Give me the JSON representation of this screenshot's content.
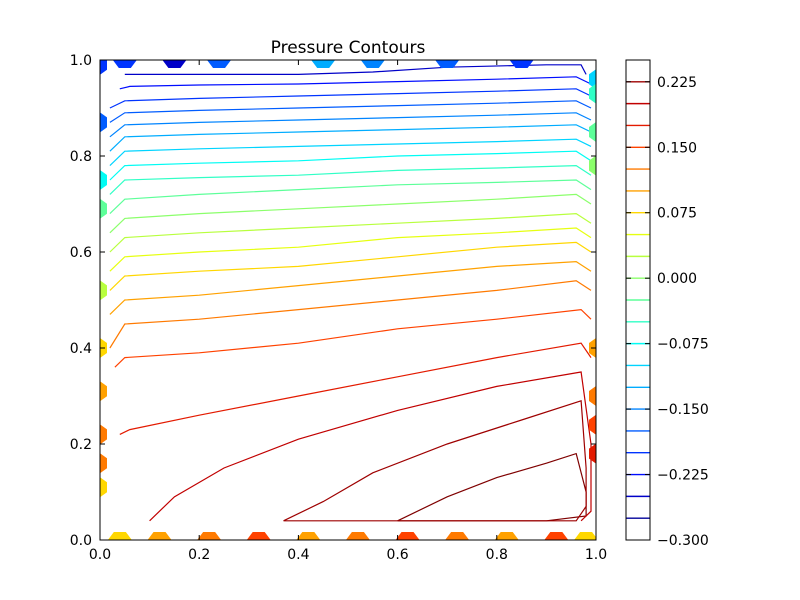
{
  "chart_data": {
    "type": "contour",
    "title": "Pressure Contours",
    "xlabel": "",
    "ylabel": "",
    "xlim": [
      0.0,
      1.0
    ],
    "ylim": [
      0.0,
      1.0
    ],
    "x_ticks": [
      "0.0",
      "0.2",
      "0.4",
      "0.6",
      "0.8",
      "1.0"
    ],
    "y_ticks": [
      "0.0",
      "0.2",
      "0.4",
      "0.6",
      "0.8",
      "1.0"
    ],
    "grid": false,
    "colorbar": {
      "placement": "right",
      "range": [
        -0.3,
        0.25
      ],
      "tick_labels": [
        "0.225",
        "0.150",
        "0.075",
        "0.000",
        "−0.075",
        "−0.150",
        "−0.225",
        "−0.300"
      ],
      "tick_values": [
        0.225,
        0.15,
        0.075,
        0.0,
        -0.075,
        -0.15,
        -0.225,
        -0.3
      ],
      "levels": [
        -0.3,
        -0.275,
        -0.25,
        -0.225,
        -0.2,
        -0.175,
        -0.15,
        -0.125,
        -0.1,
        -0.075,
        -0.05,
        -0.025,
        0.0,
        0.025,
        0.05,
        0.075,
        0.1,
        0.125,
        0.15,
        0.175,
        0.2,
        0.225,
        0.25
      ],
      "colormap": "jet"
    },
    "contour_lines": [
      {
        "level": 0.25,
        "color": "#7f0000",
        "points": [
          [
            0.6,
            0.04
          ],
          [
            0.7,
            0.09
          ],
          [
            0.8,
            0.13
          ],
          [
            0.9,
            0.16
          ],
          [
            0.96,
            0.18
          ],
          [
            0.98,
            0.1
          ],
          [
            0.98,
            0.05
          ],
          [
            0.9,
            0.04
          ],
          [
            0.75,
            0.04
          ],
          [
            0.6,
            0.04
          ]
        ]
      },
      {
        "level": 0.225,
        "color": "#9e0000",
        "points": [
          [
            0.37,
            0.04
          ],
          [
            0.45,
            0.08
          ],
          [
            0.55,
            0.14
          ],
          [
            0.7,
            0.2
          ],
          [
            0.85,
            0.25
          ],
          [
            0.97,
            0.29
          ],
          [
            0.98,
            0.15
          ],
          [
            0.98,
            0.07
          ],
          [
            0.96,
            0.04
          ],
          [
            0.7,
            0.04
          ],
          [
            0.5,
            0.04
          ],
          [
            0.37,
            0.04
          ]
        ]
      },
      {
        "level": 0.2,
        "color": "#c10000",
        "points": [
          [
            0.1,
            0.04
          ],
          [
            0.15,
            0.09
          ],
          [
            0.25,
            0.15
          ],
          [
            0.4,
            0.21
          ],
          [
            0.6,
            0.27
          ],
          [
            0.8,
            0.32
          ],
          [
            0.97,
            0.35
          ],
          [
            0.99,
            0.2
          ],
          [
            0.99,
            0.06
          ],
          [
            0.97,
            0.04
          ]
        ]
      },
      {
        "level": 0.175,
        "color": "#e31a00",
        "points": [
          [
            0.04,
            0.22
          ],
          [
            0.06,
            0.23
          ],
          [
            0.2,
            0.26
          ],
          [
            0.4,
            0.3
          ],
          [
            0.6,
            0.34
          ],
          [
            0.8,
            0.38
          ],
          [
            0.97,
            0.41
          ],
          [
            0.99,
            0.38
          ]
        ]
      },
      {
        "level": 0.15,
        "color": "#ff4200",
        "points": [
          [
            0.03,
            0.36
          ],
          [
            0.05,
            0.38
          ],
          [
            0.2,
            0.39
          ],
          [
            0.4,
            0.41
          ],
          [
            0.6,
            0.44
          ],
          [
            0.8,
            0.46
          ],
          [
            0.97,
            0.48
          ],
          [
            0.99,
            0.46
          ]
        ]
      },
      {
        "level": 0.125,
        "color": "#ff7a00",
        "points": [
          [
            0.02,
            0.4
          ],
          [
            0.05,
            0.45
          ],
          [
            0.2,
            0.46
          ],
          [
            0.4,
            0.48
          ],
          [
            0.6,
            0.5
          ],
          [
            0.8,
            0.52
          ],
          [
            0.96,
            0.54
          ],
          [
            0.99,
            0.52
          ]
        ]
      },
      {
        "level": 0.1,
        "color": "#ffa100",
        "points": [
          [
            0.02,
            0.47
          ],
          [
            0.05,
            0.5
          ],
          [
            0.2,
            0.51
          ],
          [
            0.4,
            0.53
          ],
          [
            0.6,
            0.55
          ],
          [
            0.8,
            0.57
          ],
          [
            0.96,
            0.58
          ],
          [
            0.99,
            0.56
          ]
        ]
      },
      {
        "level": 0.075,
        "color": "#ffd700",
        "points": [
          [
            0.02,
            0.52
          ],
          [
            0.05,
            0.55
          ],
          [
            0.2,
            0.56
          ],
          [
            0.4,
            0.57
          ],
          [
            0.6,
            0.59
          ],
          [
            0.8,
            0.61
          ],
          [
            0.96,
            0.62
          ],
          [
            0.99,
            0.6
          ]
        ]
      },
      {
        "level": 0.05,
        "color": "#e6ff10",
        "points": [
          [
            0.02,
            0.56
          ],
          [
            0.05,
            0.59
          ],
          [
            0.2,
            0.6
          ],
          [
            0.4,
            0.61
          ],
          [
            0.6,
            0.63
          ],
          [
            0.8,
            0.64
          ],
          [
            0.96,
            0.65
          ],
          [
            0.99,
            0.63
          ]
        ]
      },
      {
        "level": 0.025,
        "color": "#b8ff3e",
        "points": [
          [
            0.02,
            0.6
          ],
          [
            0.05,
            0.63
          ],
          [
            0.2,
            0.64
          ],
          [
            0.4,
            0.65
          ],
          [
            0.6,
            0.66
          ],
          [
            0.8,
            0.67
          ],
          [
            0.96,
            0.68
          ],
          [
            0.99,
            0.66
          ]
        ]
      },
      {
        "level": 0.0,
        "color": "#8bff6b",
        "points": [
          [
            0.02,
            0.64
          ],
          [
            0.05,
            0.67
          ],
          [
            0.2,
            0.68
          ],
          [
            0.4,
            0.69
          ],
          [
            0.6,
            0.7
          ],
          [
            0.8,
            0.71
          ],
          [
            0.96,
            0.72
          ],
          [
            0.99,
            0.7
          ]
        ]
      },
      {
        "level": -0.025,
        "color": "#5dff99",
        "points": [
          [
            0.02,
            0.68
          ],
          [
            0.05,
            0.71
          ],
          [
            0.2,
            0.72
          ],
          [
            0.4,
            0.73
          ],
          [
            0.6,
            0.74
          ],
          [
            0.8,
            0.745
          ],
          [
            0.96,
            0.75
          ],
          [
            0.99,
            0.73
          ]
        ]
      },
      {
        "level": -0.05,
        "color": "#30ffc6",
        "points": [
          [
            0.02,
            0.72
          ],
          [
            0.05,
            0.75
          ],
          [
            0.2,
            0.755
          ],
          [
            0.4,
            0.76
          ],
          [
            0.6,
            0.77
          ],
          [
            0.8,
            0.775
          ],
          [
            0.96,
            0.78
          ],
          [
            0.99,
            0.76
          ]
        ]
      },
      {
        "level": -0.075,
        "color": "#00fcf4",
        "points": [
          [
            0.02,
            0.75
          ],
          [
            0.05,
            0.78
          ],
          [
            0.2,
            0.785
          ],
          [
            0.4,
            0.79
          ],
          [
            0.6,
            0.8
          ],
          [
            0.8,
            0.805
          ],
          [
            0.96,
            0.81
          ],
          [
            0.99,
            0.79
          ]
        ]
      },
      {
        "level": -0.1,
        "color": "#00d4ff",
        "points": [
          [
            0.02,
            0.78
          ],
          [
            0.05,
            0.81
          ],
          [
            0.2,
            0.815
          ],
          [
            0.4,
            0.82
          ],
          [
            0.6,
            0.825
          ],
          [
            0.8,
            0.83
          ],
          [
            0.96,
            0.835
          ],
          [
            0.99,
            0.82
          ]
        ]
      },
      {
        "level": -0.125,
        "color": "#00acff",
        "points": [
          [
            0.02,
            0.81
          ],
          [
            0.05,
            0.84
          ],
          [
            0.2,
            0.845
          ],
          [
            0.4,
            0.85
          ],
          [
            0.6,
            0.855
          ],
          [
            0.8,
            0.86
          ],
          [
            0.96,
            0.865
          ],
          [
            0.99,
            0.85
          ]
        ]
      },
      {
        "level": -0.15,
        "color": "#0084ff",
        "points": [
          [
            0.02,
            0.84
          ],
          [
            0.05,
            0.865
          ],
          [
            0.2,
            0.87
          ],
          [
            0.4,
            0.875
          ],
          [
            0.6,
            0.88
          ],
          [
            0.8,
            0.885
          ],
          [
            0.96,
            0.89
          ],
          [
            0.99,
            0.875
          ]
        ]
      },
      {
        "level": -0.175,
        "color": "#005cff",
        "points": [
          [
            0.02,
            0.87
          ],
          [
            0.05,
            0.89
          ],
          [
            0.2,
            0.895
          ],
          [
            0.4,
            0.9
          ],
          [
            0.6,
            0.905
          ],
          [
            0.8,
            0.91
          ],
          [
            0.96,
            0.915
          ],
          [
            0.99,
            0.9
          ]
        ]
      },
      {
        "level": -0.2,
        "color": "#0034ff",
        "points": [
          [
            0.02,
            0.9
          ],
          [
            0.05,
            0.915
          ],
          [
            0.2,
            0.92
          ],
          [
            0.4,
            0.925
          ],
          [
            0.6,
            0.93
          ],
          [
            0.8,
            0.935
          ],
          [
            0.96,
            0.94
          ],
          [
            0.99,
            0.925
          ]
        ]
      },
      {
        "level": -0.225,
        "color": "#000cff",
        "points": [
          [
            0.04,
            0.94
          ],
          [
            0.06,
            0.945
          ],
          [
            0.2,
            0.948
          ],
          [
            0.4,
            0.95
          ],
          [
            0.6,
            0.955
          ],
          [
            0.8,
            0.96
          ],
          [
            0.96,
            0.965
          ],
          [
            0.99,
            0.95
          ]
        ]
      },
      {
        "level": -0.25,
        "color": "#0000c8",
        "points": [
          [
            0.05,
            0.97
          ],
          [
            0.2,
            0.97
          ],
          [
            0.4,
            0.97
          ],
          [
            0.55,
            0.975
          ],
          [
            0.7,
            0.985
          ],
          [
            0.9,
            0.99
          ],
          [
            0.97,
            0.99
          ],
          [
            0.98,
            0.97
          ]
        ]
      }
    ],
    "edge_markers": [
      {
        "edge": "top",
        "x": [
          0.05,
          0.15,
          0.24,
          0.45,
          0.55,
          0.7,
          0.85
        ],
        "colors": [
          "#0034ff",
          "#0000c8",
          "#005cff",
          "#00acff",
          "#0084ff",
          "#005cff",
          "#0034ff"
        ]
      },
      {
        "edge": "left_top",
        "y": [
          0.99,
          0.87,
          0.75,
          0.69
        ],
        "colors": [
          "#0034ff",
          "#005cff",
          "#00fcf4",
          "#5dff99"
        ]
      },
      {
        "edge": "right_top",
        "y": [
          0.96,
          0.93,
          0.85,
          0.78
        ],
        "colors": [
          "#00d4ff",
          "#30ffc6",
          "#5dff99",
          "#8bff6b"
        ]
      },
      {
        "edge": "left_mid",
        "y": [
          0.52,
          0.4,
          0.31,
          0.22
        ],
        "colors": [
          "#b8ff3e",
          "#ffd700",
          "#ffa100",
          "#ff7a00"
        ]
      },
      {
        "edge": "right_mid",
        "y": [
          0.4,
          0.3,
          0.24,
          0.18
        ],
        "colors": [
          "#ffa100",
          "#ff7a00",
          "#ff4200",
          "#e31a00"
        ]
      },
      {
        "edge": "left_low",
        "y": [
          0.16,
          0.11
        ],
        "colors": [
          "#ff7a00",
          "#ffd700"
        ]
      },
      {
        "edge": "bottom",
        "x": [
          0.04,
          0.12,
          0.22,
          0.32,
          0.42,
          0.52,
          0.62,
          0.72,
          0.82,
          0.92,
          0.98
        ],
        "colors": [
          "#ffd700",
          "#ffa100",
          "#ff7a00",
          "#ff4200",
          "#ffa100",
          "#ff7a00",
          "#ff4200",
          "#ff7a00",
          "#ffa100",
          "#ff4200",
          "#ffd700"
        ]
      }
    ]
  }
}
